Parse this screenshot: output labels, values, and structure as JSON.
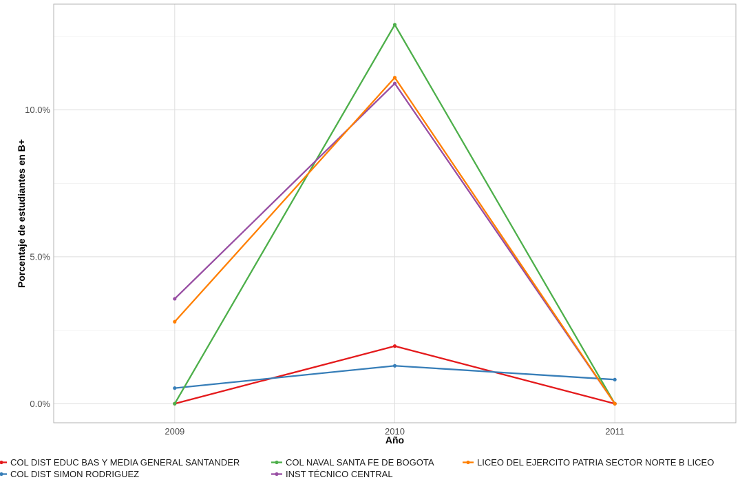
{
  "chart_data": {
    "type": "line",
    "title": "",
    "xlabel": "Año",
    "ylabel": "Porcentaje de estudiantes en B+",
    "categories": [
      "2009",
      "2010",
      "2011"
    ],
    "x": [
      2009,
      2010,
      2011
    ],
    "xlim": [
      2008.45,
      2011.55
    ],
    "ylim": [
      -0.0065,
      0.136
    ],
    "y_major_ticks": [
      0.0,
      0.05,
      0.1
    ],
    "y_tick_labels": [
      "0.0%",
      "5.0%",
      "10.0%"
    ],
    "y_minor_ticks": [
      0.025,
      0.075,
      0.125
    ],
    "grid": true,
    "legend_position": "bottom",
    "series": [
      {
        "name": "COL DIST EDUC BAS Y MEDIA GENERAL SANTANDER",
        "color": "#E41A1C",
        "values": [
          0.0,
          0.0196,
          0.0
        ]
      },
      {
        "name": "COL DIST SIMON RODRIGUEZ",
        "color": "#377EB8",
        "values": [
          0.0053,
          0.0129,
          0.0082
        ]
      },
      {
        "name": "COL NAVAL SANTA FE DE BOGOTA",
        "color": "#4DAF4A",
        "values": [
          0.0,
          0.129,
          0.0
        ]
      },
      {
        "name": "INST TÉCNICO CENTRAL",
        "color": "#984EA3",
        "values": [
          0.0357,
          0.109,
          0.0
        ]
      },
      {
        "name": "LICEO DEL EJERCITO PATRIA SECTOR NORTE B LICEO",
        "color": "#FF7F00",
        "values": [
          0.0279,
          0.111,
          0.0
        ]
      }
    ]
  }
}
